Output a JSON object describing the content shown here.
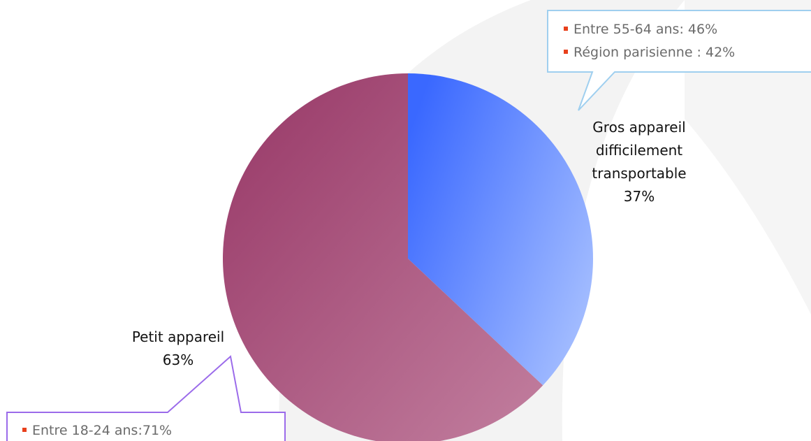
{
  "chart_data": {
    "type": "pie",
    "categories": [
      "Gros appareil difficilement transportable",
      "Petit appareil"
    ],
    "values": [
      37,
      63
    ],
    "value_labels": [
      "37%",
      "63%"
    ],
    "colors": [
      {
        "from": "#3a68ff",
        "to": "#a6bfff"
      },
      {
        "from": "#973766",
        "to": "#c27f9f"
      }
    ],
    "annotations": [
      {
        "items": [
          "Entre 55-64 ans: 46%",
          "Région parisienne : 42%"
        ]
      },
      {
        "items": [
          "Entre 18-24 ans:71%"
        ]
      }
    ]
  }
}
